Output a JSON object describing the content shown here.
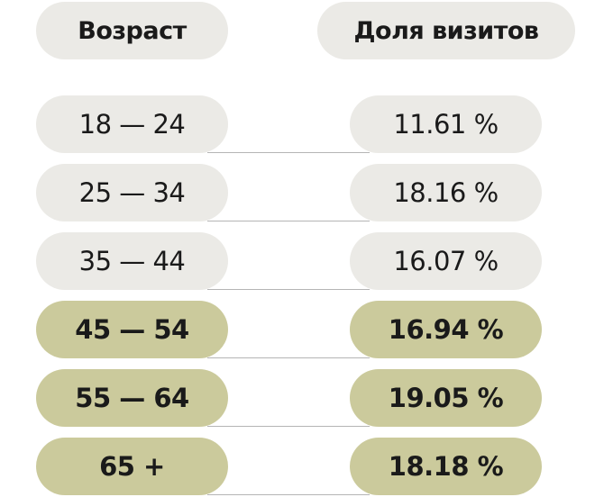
{
  "table": {
    "header": [
      "Возраст",
      "Доля визитов"
    ],
    "rows": [
      [
        "18 — 24",
        "11.61 %"
      ],
      [
        "25 — 34",
        "18.16 %"
      ],
      [
        "35 — 44",
        "16.07 %"
      ],
      [
        "45 — 54",
        "16.94 %"
      ],
      [
        "55 — 64",
        "19.05 %"
      ],
      [
        "65 +",
        "18.18 %"
      ]
    ]
  }
}
